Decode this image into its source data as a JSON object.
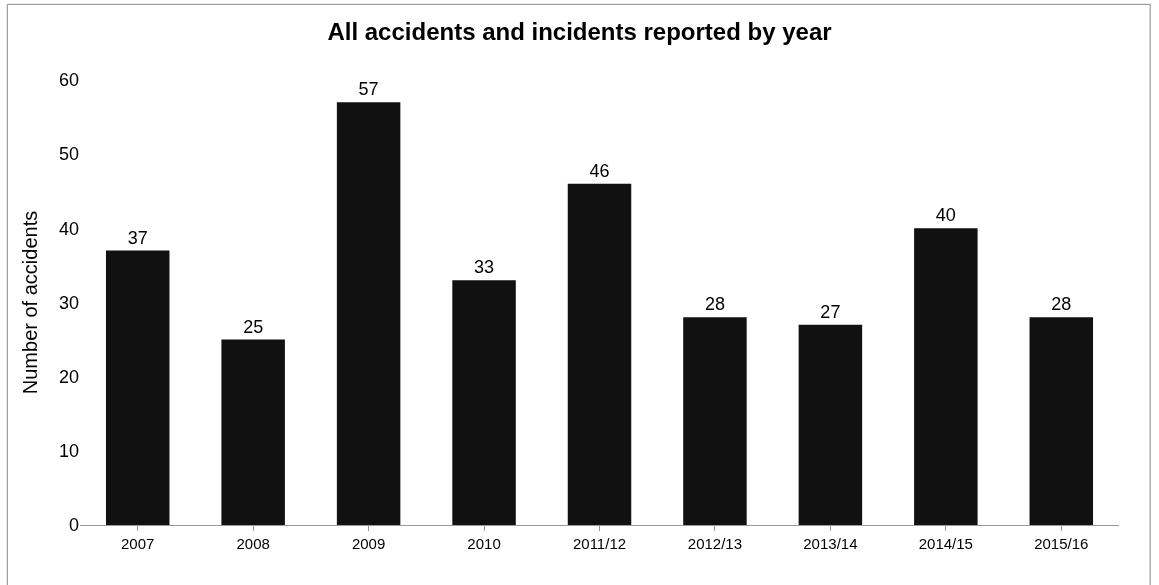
{
  "chart_data": {
    "type": "bar",
    "title": "All accidents and incidents reported by year",
    "ylabel": "Number of accidents",
    "categories": [
      "2007",
      "2008",
      "2009",
      "2010",
      "2011/12",
      "2012/13",
      "2013/14",
      "2014/15",
      "2015/16"
    ],
    "values": [
      37,
      25,
      57,
      33,
      46,
      28,
      27,
      40,
      28
    ],
    "color": "#111111",
    "ylim": [
      0,
      60
    ],
    "yticks": [
      0,
      10,
      20,
      30,
      40,
      50,
      60
    ],
    "grid": false,
    "data_labels": true
  }
}
